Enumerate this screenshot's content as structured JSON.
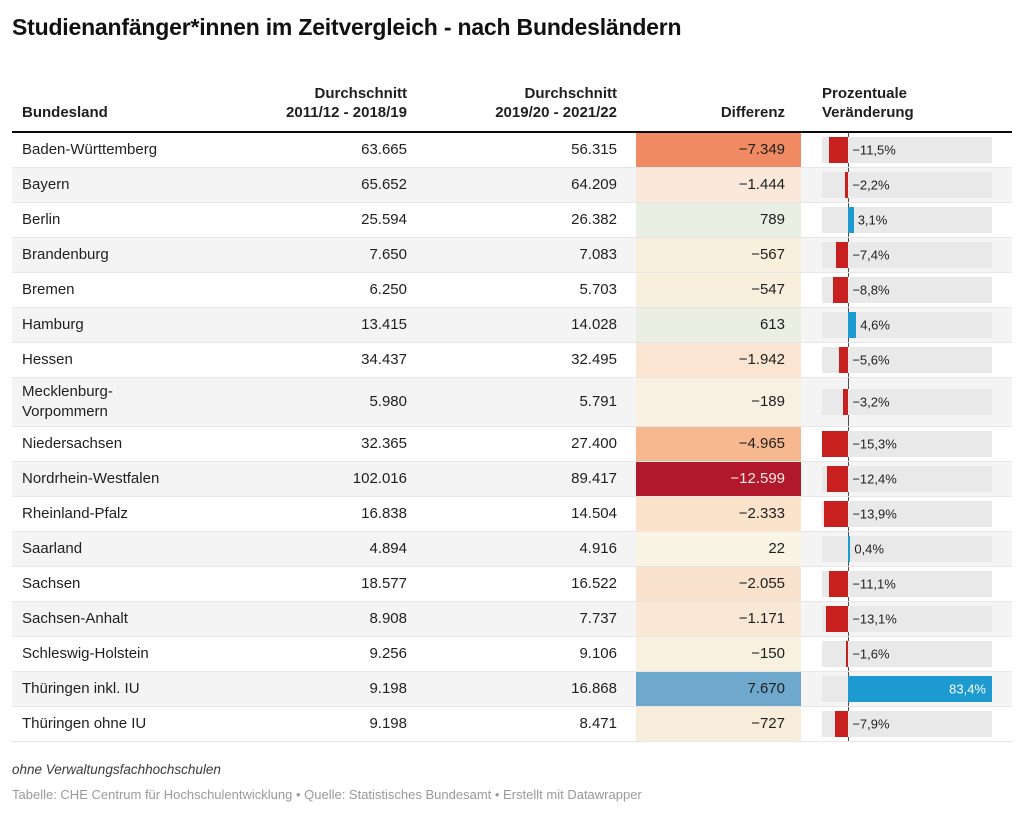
{
  "title": "Studienanfänger*innen im Zeitvergleich - nach Bundesländern",
  "header": {
    "bundesland": "Bundesland",
    "avg1_line1": "Durchschnitt",
    "avg1_line2": "2011/12 - 2018/19",
    "avg2_line1": "Durchschnitt",
    "avg2_line2": "2019/20 - 2021/22",
    "differenz": "Differenz",
    "pct_line1": "Prozentuale",
    "pct_line2": "Veränderung"
  },
  "chart_data": {
    "type": "table",
    "columns": [
      "Bundesland",
      "Durchschnitt 2011/12 - 2018/19",
      "Durchschnitt 2019/20 - 2021/22",
      "Differenz",
      "Prozentuale Veränderung"
    ],
    "bar_axis": {
      "min": -15.3,
      "max": 83.4
    },
    "colors": {
      "bar_negative": "#c7201f",
      "bar_positive": "#1d9bd1",
      "bar_track": "#e9e9e9",
      "heat_max_negative": "#b2182b",
      "heat_max_positive": "#6fa8cd"
    },
    "rows": [
      {
        "bundesland": "Baden-Württemberg",
        "avg_2011_2018": "63.665",
        "avg_2019_2021": "56.315",
        "differenz": "−7.349",
        "diff_bg": "#ef8a62",
        "diff_text": "#1f1f1f",
        "pct_label": "−11,5%",
        "pct_value": -11.5
      },
      {
        "bundesland": "Bayern",
        "avg_2011_2018": "65.652",
        "avg_2019_2021": "64.209",
        "differenz": "−1.444",
        "diff_bg": "#fae8da",
        "diff_text": "#1f1f1f",
        "pct_label": "−2,2%",
        "pct_value": -2.2
      },
      {
        "bundesland": "Berlin",
        "avg_2011_2018": "25.594",
        "avg_2019_2021": "26.382",
        "differenz": "789",
        "diff_bg": "#eaefe4",
        "diff_text": "#1f1f1f",
        "pct_label": "3,1%",
        "pct_value": 3.1
      },
      {
        "bundesland": "Brandenburg",
        "avg_2011_2018": "7.650",
        "avg_2019_2021": "7.083",
        "differenz": "−567",
        "diff_bg": "#f9efdd",
        "diff_text": "#1f1f1f",
        "pct_label": "−7,4%",
        "pct_value": -7.4
      },
      {
        "bundesland": "Bremen",
        "avg_2011_2018": "6.250",
        "avg_2019_2021": "5.703",
        "differenz": "−547",
        "diff_bg": "#f9efdd",
        "diff_text": "#1f1f1f",
        "pct_label": "−8,8%",
        "pct_value": -8.8
      },
      {
        "bundesland": "Hamburg",
        "avg_2011_2018": "13.415",
        "avg_2019_2021": "14.028",
        "differenz": "613",
        "diff_bg": "#ebefe3",
        "diff_text": "#1f1f1f",
        "pct_label": "4,6%",
        "pct_value": 4.6
      },
      {
        "bundesland": "Hessen",
        "avg_2011_2018": "34.437",
        "avg_2019_2021": "32.495",
        "differenz": "−1.942",
        "diff_bg": "#fae5d2",
        "diff_text": "#1f1f1f",
        "pct_label": "−5,6%",
        "pct_value": -5.6
      },
      {
        "bundesland": "Mecklenburg-\nVorpommern",
        "avg_2011_2018": "5.980",
        "avg_2019_2021": "5.791",
        "differenz": "−189",
        "diff_bg": "#f8f1e1",
        "diff_text": "#1f1f1f",
        "pct_label": "−3,2%",
        "pct_value": -3.2
      },
      {
        "bundesland": "Niedersachsen",
        "avg_2011_2018": "32.365",
        "avg_2019_2021": "27.400",
        "differenz": "−4.965",
        "diff_bg": "#f7b78f",
        "diff_text": "#1f1f1f",
        "pct_label": "−15,3%",
        "pct_value": -15.3
      },
      {
        "bundesland": "Nordrhein-Westfalen",
        "avg_2011_2018": "102.016",
        "avg_2019_2021": "89.417",
        "differenz": "−12.599",
        "diff_bg": "#b2182b",
        "diff_text": "#fdeae6",
        "pct_label": "−12,4%",
        "pct_value": -12.4
      },
      {
        "bundesland": "Rheinland-Pfalz",
        "avg_2011_2018": "16.838",
        "avg_2019_2021": "14.504",
        "differenz": "−2.333",
        "diff_bg": "#fae2cb",
        "diff_text": "#1f1f1f",
        "pct_label": "−13,9%",
        "pct_value": -13.9
      },
      {
        "bundesland": "Saarland",
        "avg_2011_2018": "4.894",
        "avg_2019_2021": "4.916",
        "differenz": "22",
        "diff_bg": "#f9f4e3",
        "diff_text": "#1f1f1f",
        "pct_label": "0,4%",
        "pct_value": 0.4
      },
      {
        "bundesland": "Sachsen",
        "avg_2011_2018": "18.577",
        "avg_2019_2021": "16.522",
        "differenz": "−2.055",
        "diff_bg": "#fae3ce",
        "diff_text": "#1f1f1f",
        "pct_label": "−11,1%",
        "pct_value": -11.1
      },
      {
        "bundesland": "Sachsen-Anhalt",
        "avg_2011_2018": "8.908",
        "avg_2019_2021": "7.737",
        "differenz": "−1.171",
        "diff_bg": "#fae8d6",
        "diff_text": "#1f1f1f",
        "pct_label": "−13,1%",
        "pct_value": -13.1
      },
      {
        "bundesland": "Schleswig-Holstein",
        "avg_2011_2018": "9.256",
        "avg_2019_2021": "9.106",
        "differenz": "−150",
        "diff_bg": "#f8f1e0",
        "diff_text": "#1f1f1f",
        "pct_label": "−1,6%",
        "pct_value": -1.6
      },
      {
        "bundesland": "Thüringen inkl. IU",
        "avg_2011_2018": "9.198",
        "avg_2019_2021": "16.868",
        "differenz": "7.670",
        "diff_bg": "#6fa8cd",
        "diff_text": "#1f1f1f",
        "pct_label": "83,4%",
        "pct_value": 83.4
      },
      {
        "bundesland": "Thüringen ohne IU",
        "avg_2011_2018": "9.198",
        "avg_2019_2021": "8.471",
        "differenz": "−727",
        "diff_bg": "#f8edda",
        "diff_text": "#1f1f1f",
        "pct_label": "−7,9%",
        "pct_value": -7.9
      }
    ]
  },
  "footnote": "ohne Verwaltungsfachhochschulen",
  "attribution": "Tabelle: CHE Centrum für Hochschulentwicklung • Quelle: Statistisches Bundesamt • Erstellt mit Datawrapper"
}
